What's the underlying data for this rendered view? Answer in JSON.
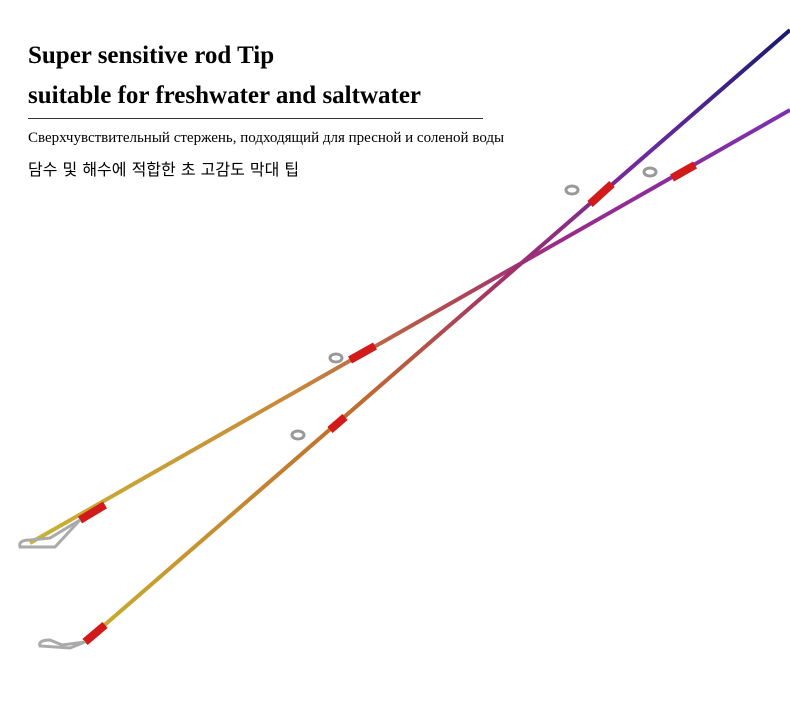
{
  "headline": {
    "line1": "Super sensitive rod Tip",
    "line2": "suitable for freshwater and saltwater"
  },
  "russian": "Сверхчувствительный стержень, подходящий для пресной и соленой воды",
  "korean": "담수 및 해수에 적합한 초 고감도 막대 팁"
}
